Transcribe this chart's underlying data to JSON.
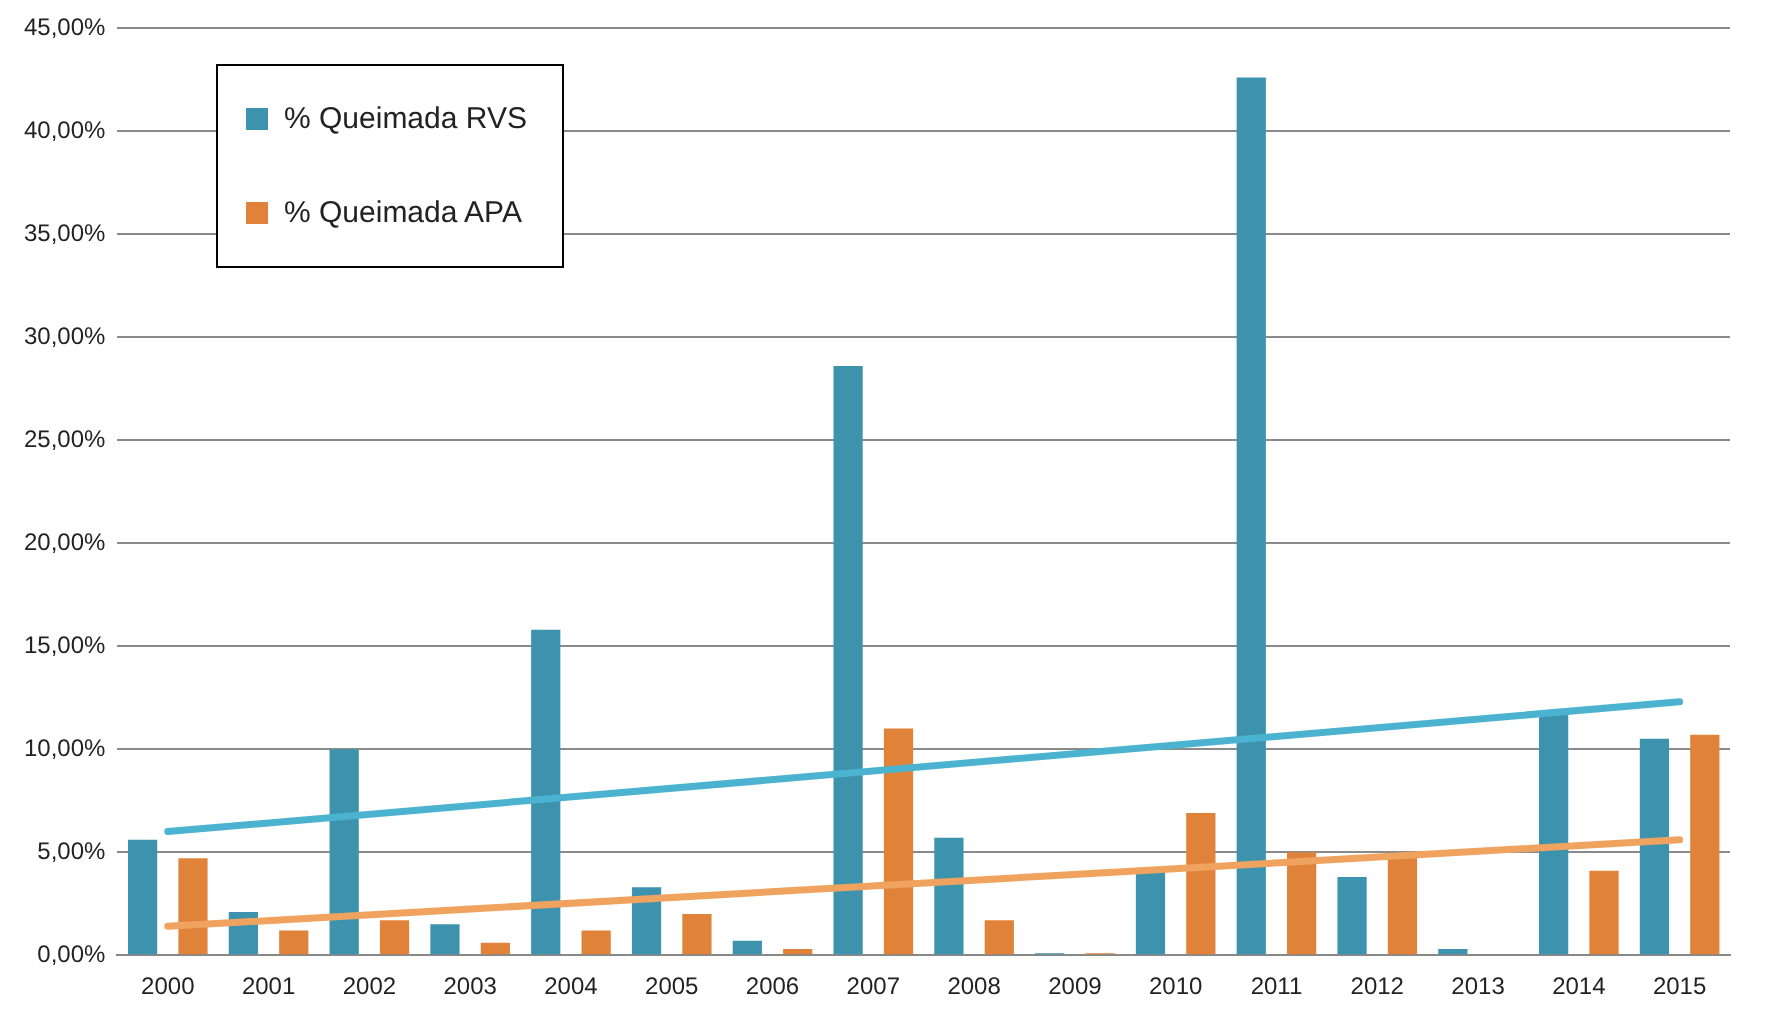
{
  "chart_data": {
    "type": "bar",
    "categories": [
      "2000",
      "2001",
      "2002",
      "2003",
      "2004",
      "2005",
      "2006",
      "2007",
      "2008",
      "2009",
      "2010",
      "2011",
      "2012",
      "2013",
      "2014",
      "2015"
    ],
    "series": [
      {
        "name": "% Queimada RVS",
        "color": "#3d93ae",
        "values": [
          5.6,
          2.1,
          10.0,
          1.5,
          15.8,
          3.3,
          0.7,
          28.6,
          5.7,
          0.1,
          4.2,
          42.6,
          3.8,
          0.3,
          11.8,
          10.5
        ]
      },
      {
        "name": "% Queimada APA",
        "color": "#e0823a",
        "values": [
          4.7,
          1.2,
          1.7,
          0.6,
          1.2,
          2.0,
          0.3,
          11.0,
          1.7,
          0.1,
          6.9,
          5.0,
          4.8,
          0,
          4.1,
          10.7
        ]
      },
      {
        "type": "line",
        "color": "#4bb3d0",
        "values": [
          6.0,
          null,
          null,
          null,
          null,
          null,
          null,
          null,
          null,
          null,
          null,
          null,
          null,
          null,
          null,
          12.3
        ]
      },
      {
        "type": "line",
        "color": "#f0a35e",
        "values": [
          1.4,
          null,
          null,
          null,
          null,
          null,
          null,
          null,
          null,
          null,
          null,
          null,
          null,
          null,
          null,
          5.6
        ]
      }
    ],
    "ylim": [
      0,
      45
    ],
    "yticks": [
      {
        "value": 0,
        "label": "0,00%"
      },
      {
        "value": 5,
        "label": "5,00%"
      },
      {
        "value": 10,
        "label": "10,00%"
      },
      {
        "value": 15,
        "label": "15,00%"
      },
      {
        "value": 20,
        "label": "20,00%"
      },
      {
        "value": 25,
        "label": "25,00%"
      },
      {
        "value": 30,
        "label": "30,00%"
      },
      {
        "value": 35,
        "label": "35,00%"
      },
      {
        "value": 40,
        "label": "40,00%"
      },
      {
        "value": 45,
        "label": "45,00%"
      }
    ],
    "grid": "y",
    "legend": "top left",
    "marker": "none"
  }
}
